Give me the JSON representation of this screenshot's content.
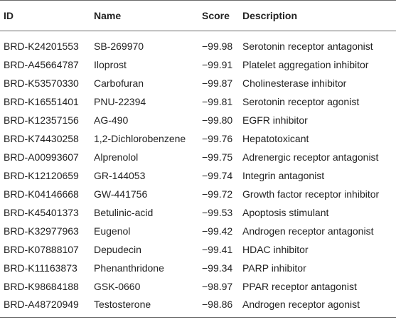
{
  "table": {
    "headers": [
      "ID",
      "Name",
      "Score",
      "Description"
    ],
    "rows": [
      [
        "BRD-K24201553",
        "SB-269970",
        "−99.98",
        "Serotonin receptor antagonist"
      ],
      [
        "BRD-A45664787",
        "Iloprost",
        "−99.91",
        "Platelet aggregation inhibitor"
      ],
      [
        "BRD-K53570330",
        "Carbofuran",
        "−99.87",
        "Cholinesterase inhibitor"
      ],
      [
        "BRD-K16551401",
        "PNU-22394",
        "−99.81",
        "Serotonin receptor agonist"
      ],
      [
        "BRD-K12357156",
        "AG-490",
        "−99.80",
        "EGFR inhibitor"
      ],
      [
        "BRD-K74430258",
        "1,2-Dichlorobenzene",
        "−99.76",
        "Hepatotoxicant"
      ],
      [
        "BRD-A00993607",
        "Alprenolol",
        "−99.75",
        "Adrenergic receptor antagonist"
      ],
      [
        "BRD-K12120659",
        "GR-144053",
        "−99.74",
        "Integrin antagonist"
      ],
      [
        "BRD-K04146668",
        "GW-441756",
        "−99.72",
        "Growth factor receptor inhibitor"
      ],
      [
        "BRD-K45401373",
        "Betulinic-acid",
        "−99.53",
        "Apoptosis stimulant"
      ],
      [
        "BRD-K32977963",
        "Eugenol",
        "−99.42",
        "Androgen receptor antagonist"
      ],
      [
        "BRD-K07888107",
        "Depudecin",
        "−99.41",
        "HDAC inhibitor"
      ],
      [
        "BRD-K11163873",
        "Phenanthridone",
        "−99.34",
        "PARP inhibitor"
      ],
      [
        "BRD-K98684188",
        "GSK-0660",
        "−98.97",
        "PPAR receptor antagonist"
      ],
      [
        "BRD-A48720949",
        "Testosterone",
        "−98.86",
        "Androgen receptor agonist"
      ]
    ]
  }
}
